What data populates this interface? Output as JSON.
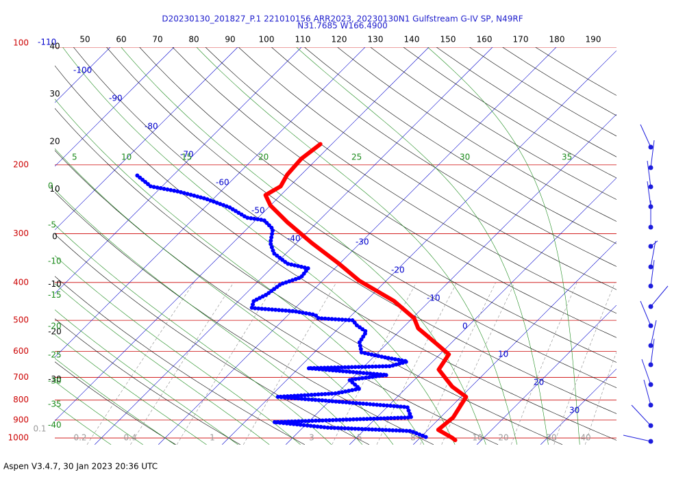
{
  "chart_data": {
    "type": "skewt",
    "title": "D20230130_201827_P.1 221010156 ARR2023, 20230130N1 Gulfstream G-IV SP, N49RF",
    "subtitle": "N31.7685 W166.4900",
    "footer": "Aspen V3.4.7, 30 Jan 2023  20:36 UTC",
    "isobars": [
      100,
      200,
      300,
      400,
      500,
      600,
      700,
      800,
      900,
      1000
    ],
    "isobar_color": "#cc0000",
    "isotherms": [
      -110,
      -100,
      -90,
      -80,
      -70,
      -60,
      -50,
      -40,
      -30,
      -20,
      -10,
      0,
      10,
      20,
      30
    ],
    "isotherm_color": "#0000cc",
    "dry_adiabats_top": [
      50,
      60,
      70,
      80,
      90,
      100,
      110,
      120,
      130,
      140,
      150,
      160,
      170,
      180,
      190
    ],
    "dry_adiabats_left": [
      40,
      30,
      20,
      10,
      0,
      -10,
      -20,
      -30
    ],
    "moist_adiabats_left": [
      0,
      -5,
      -10,
      -15,
      -20,
      -25,
      -30,
      -35,
      -40
    ],
    "moist_adiabats_top": [
      5,
      10,
      15,
      20,
      25,
      30,
      35
    ],
    "moist_color": "#1a8a1a",
    "mixing_ratios": [
      0.1,
      0.2,
      0.4,
      1,
      3,
      5,
      8,
      10,
      20,
      30,
      40
    ],
    "series": [
      {
        "color": "#ff0000",
        "style": "solid",
        "pressure": [
          177,
          193,
          212,
          227,
          239,
          254,
          281,
          317,
          358,
          396,
          446,
          494,
          524,
          580,
          611,
          668,
          739,
          785,
          886,
          953,
          1000,
          1013
        ],
        "values": [
          -51.8,
          -52.5,
          -52.2,
          -51.4,
          -52.4,
          -50.0,
          -44.6,
          -37.6,
          -30.1,
          -24.2,
          -15.6,
          -9.7,
          -7.5,
          -1.6,
          1.4,
          2.2,
          7.0,
          10.8,
          12.0,
          11.6,
          15.1,
          15.9
        ]
      },
      {
        "color": "#0000ff",
        "style": "dotted",
        "pressure": [
          213,
          227,
          234,
          244,
          257,
          273,
          277,
          292,
          317,
          337,
          358,
          368,
          388,
          404,
          429,
          446,
          465,
          474,
          484,
          494,
          500,
          514,
          535,
          569,
          604,
          621,
          637,
          655,
          663,
          690,
          710,
          748,
          769,
          785,
          834,
          886,
          911,
          941,
          960,
          1000
        ],
        "values": [
          -75.6,
          -71.8,
          -66.7,
          -61.3,
          -56.1,
          -51.8,
          -48.7,
          -45.9,
          -44.1,
          -41.9,
          -38.2,
          -34.2,
          -33.9,
          -36.0,
          -36.6,
          -37.6,
          -36.8,
          -29.6,
          -25.8,
          -24.7,
          -19.0,
          -17.7,
          -15.1,
          -14.5,
          -12.6,
          -8.4,
          -4.0,
          -5.9,
          -18.5,
          -5.1,
          -10.2,
          -7.2,
          -10.2,
          -18.8,
          3.2,
          5.4,
          -15.4,
          -5.9,
          7.5,
          11.3
        ]
      }
    ]
  }
}
